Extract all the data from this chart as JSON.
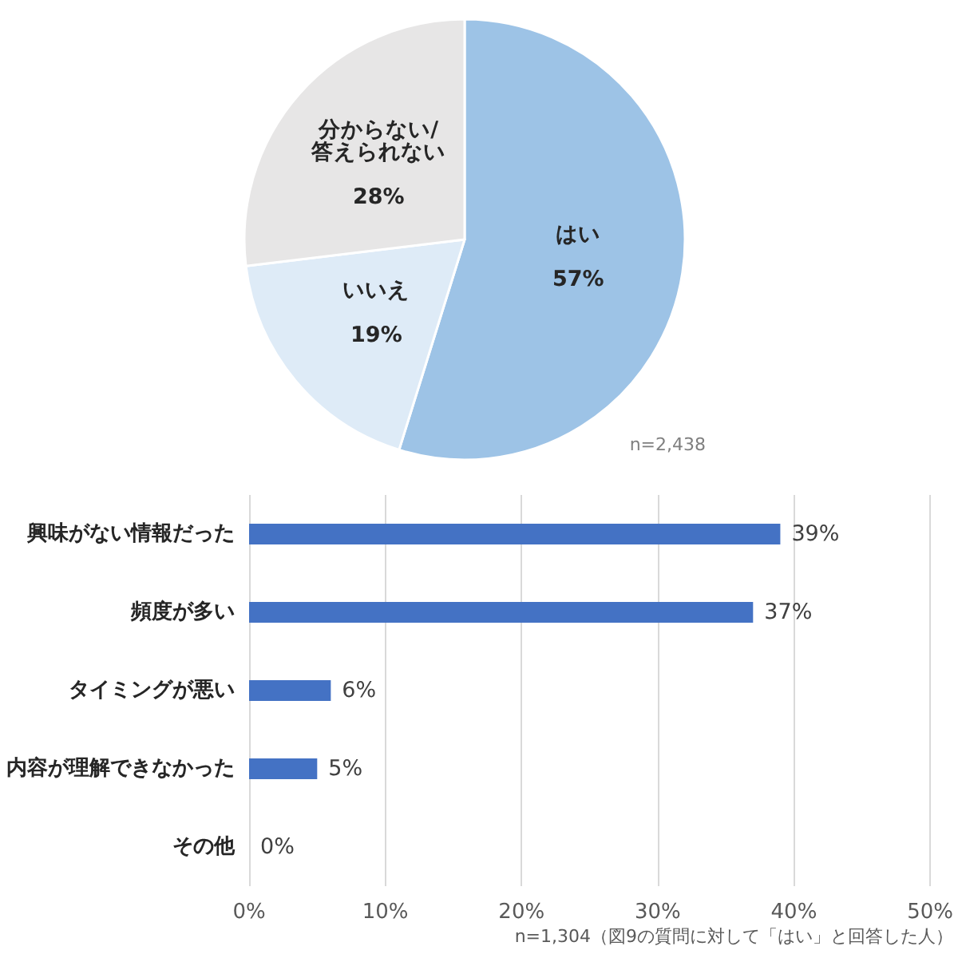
{
  "chart_data": [
    {
      "type": "pie",
      "categories": [
        "はい",
        "いいえ",
        "分からない/答えられない"
      ],
      "values": [
        57,
        19,
        28
      ],
      "value_labels": [
        "57%",
        "19%",
        "28%"
      ],
      "colors": [
        "#9dc3e6",
        "#deebf7",
        "#e7e6e6"
      ],
      "annotations": [
        "n=2,438"
      ]
    },
    {
      "type": "bar",
      "orientation": "horizontal",
      "categories": [
        "興味がない情報だった",
        "頻度が多い",
        "タイミングが悪い",
        "内容が理解できなかった",
        "その他"
      ],
      "values": [
        39,
        37,
        6,
        5,
        0
      ],
      "value_labels": [
        "39%",
        "37%",
        "6%",
        "5%",
        "0%"
      ],
      "color": "#4472c4",
      "xlim": [
        0,
        50
      ],
      "xticks": [
        {
          "value": 0,
          "label": "0%"
        },
        {
          "value": 10,
          "label": "10%"
        },
        {
          "value": 20,
          "label": "20%"
        },
        {
          "value": 30,
          "label": "30%"
        },
        {
          "value": 40,
          "label": "40%"
        },
        {
          "value": 50,
          "label": "50%"
        }
      ],
      "grid": "x",
      "annotations": [
        "n=1,304（図9の質問に対して「はい」と回答した人）"
      ]
    }
  ]
}
